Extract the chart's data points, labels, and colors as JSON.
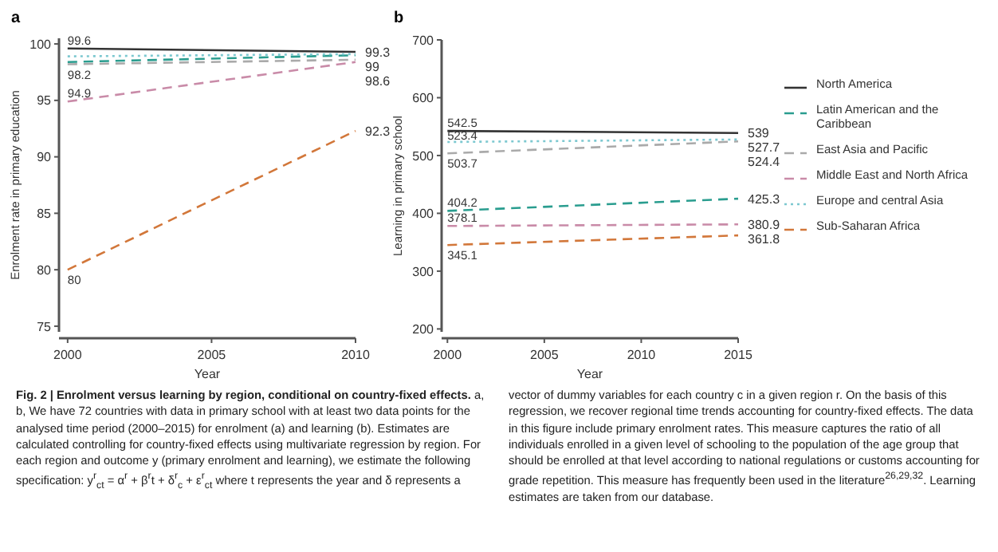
{
  "chart_data": [
    {
      "type": "line",
      "title": "a",
      "xlabel": "Year",
      "ylabel": "Enrolment rate in primary education",
      "x": [
        2000,
        2010
      ],
      "xlim": [
        1999.7,
        2010
      ],
      "xticks": [
        2000,
        2005,
        2010
      ],
      "ylim": [
        74.5,
        100.5
      ],
      "yticks": [
        75,
        80,
        85,
        90,
        95,
        100
      ],
      "grid": false,
      "legend": false,
      "series": [
        {
          "color": "#333333",
          "line_style": "solid",
          "values": [
            99.6,
            99.3
          ],
          "value_labels": [
            "99.6",
            "99.3"
          ]
        },
        {
          "color": "#2a9d8f",
          "line_style": "dashed",
          "values": [
            98.4,
            99
          ],
          "value_labels": [
            null,
            "99"
          ]
        },
        {
          "color": "#aaaaaa",
          "line_style": "dashed",
          "values": [
            98.2,
            98.6
          ],
          "value_labels": [
            "98.2",
            "98.6"
          ]
        },
        {
          "color": "#c98ba8",
          "line_style": "dashed",
          "values": [
            94.9,
            98.4
          ],
          "value_labels": [
            "94.9",
            null
          ]
        },
        {
          "color": "#7cc8d0",
          "line_style": "dotted",
          "values": [
            98.9,
            99.1
          ],
          "value_labels": [
            null,
            null
          ]
        },
        {
          "color": "#d2773a",
          "line_style": "dashed",
          "values": [
            80,
            92.3
          ],
          "value_labels": [
            "80",
            "92.3"
          ]
        }
      ],
      "annotations": [
        "Fig. 2 | Enrolment versus learning by region, conditional on country-fixed effects.",
        "a, b, We have 72 countries with data in primary school with at least two data points for the analysed time period (2000–2015) for enrolment (a) and learning (b). Estimates are calculated controlling for country-fixed effects using multivariate regression by region. For each region and outcome y (primary enrolment and learning), we estimate the following specification: y$^{r}$$_{ct}$ = α$^{r}$ + β$^{r}$t + δ$^{r}$$_{c}$ + ε$^{r}$$_{ct}$ where t represents the year and δ represents a vector of dummy variables for each country c in a given region r. On the basis of this regression, we recover regional time trends accounting for country-fixed effects. The data in this figure include primary enrolment rates. This measure captures the ratio of all individuals enrolled in a given level of schooling to the population of the age group that should be enrolled at that level according to national regulations or customs accounting for grade repetition. This measure has frequently been used in the literature$^{26,29,32}$. Learning estimates are taken from our database."
      ]
    },
    {
      "type": "line",
      "title": "b",
      "xlabel": "Year",
      "ylabel": "Learning in primary school",
      "x": [
        2000,
        2015
      ],
      "xlim": [
        1999.7,
        2015
      ],
      "xticks": [
        2000,
        2005,
        2010,
        2015
      ],
      "ylim": [
        195,
        700
      ],
      "yticks": [
        200,
        300,
        400,
        500,
        600,
        700
      ],
      "grid": false,
      "legend": "right",
      "series": [
        {
          "name": "North America",
          "color": "#333333",
          "line_style": "solid",
          "values": [
            542.5,
            539
          ],
          "value_labels": [
            "542.5",
            "539"
          ]
        },
        {
          "name": "Latin American and the Caribbean",
          "color": "#2a9d8f",
          "line_style": "dashed",
          "values": [
            404.2,
            425.3
          ],
          "value_labels": [
            "404.2",
            "425.3"
          ]
        },
        {
          "name": "East Asia and Pacific",
          "color": "#aaaaaa",
          "line_style": "dashed",
          "values": [
            503.7,
            524.4
          ],
          "value_labels": [
            "503.7",
            "524.4"
          ]
        },
        {
          "name": "Middle East and North Africa",
          "color": "#c98ba8",
          "line_style": "dashed",
          "values": [
            378.1,
            380.9
          ],
          "value_labels": [
            "378.1",
            "380.9"
          ]
        },
        {
          "name": "Europe and central Asia",
          "color": "#7cc8d0",
          "line_style": "dotted",
          "values": [
            523.4,
            527.7
          ],
          "value_labels": [
            "523.4",
            "527.7"
          ]
        },
        {
          "name": "Sub-Saharan Africa",
          "color": "#d2773a",
          "line_style": "dashed",
          "values": [
            345.1,
            361.8
          ],
          "value_labels": [
            "345.1",
            "361.8"
          ]
        }
      ]
    }
  ]
}
